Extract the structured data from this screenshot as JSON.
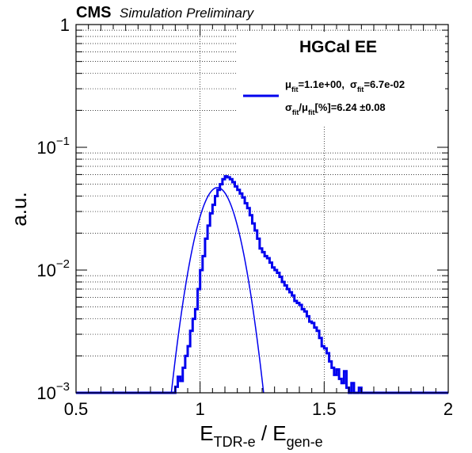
{
  "header": {
    "experiment": "CMS",
    "status": "Simulation Preliminary"
  },
  "legend": {
    "title": "HGCal EE",
    "line1": {
      "mu_sym": "μ",
      "sub": "fit",
      "mu_val": "=1.1e+00,",
      "sigma_sym": "σ",
      "sigma_val": "=6.7e-02"
    },
    "line2": {
      "sigma_sym": "σ",
      "sub": "fit",
      "slash": "/",
      "mu_sym": "μ",
      "rest": "[%]=6.24 ±0.08"
    },
    "color": "#0000ee"
  },
  "axes": {
    "ylabel": "a.u.",
    "xlabel_main1": "E",
    "xlabel_sub1": "TDR-e",
    "xlabel_sep": " / E",
    "xlabel_sub2": "gen-e"
  },
  "chart_data": {
    "type": "line",
    "title": "",
    "xlim": [
      0.5,
      2.0
    ],
    "ylim": [
      0.001,
      1.0
    ],
    "ylog": true,
    "grid": true,
    "xticks": [
      {
        "value": 0.5,
        "label": "0.5"
      },
      {
        "value": 1.0,
        "label": "1"
      },
      {
        "value": 1.5,
        "label": "1.5"
      },
      {
        "value": 2.0,
        "label": "2"
      }
    ],
    "yticks": [
      {
        "value": 1,
        "base": "1",
        "exp": ""
      },
      {
        "value": 0.1,
        "base": "10",
        "exp": "−1"
      },
      {
        "value": 0.01,
        "base": "10",
        "exp": "−2"
      },
      {
        "value": 0.001,
        "base": "10",
        "exp": "−3"
      }
    ],
    "histogram": {
      "name": "E_TDR-e / E_gen-e",
      "bin_width": 0.01,
      "x_start": 0.5,
      "values": [
        0.001,
        0.001,
        0.001,
        0.001,
        0.001,
        0.001,
        0.001,
        0.001,
        0.001,
        0.001,
        0.001,
        0.001,
        0.001,
        0.001,
        0.001,
        0.001,
        0.001,
        0.001,
        0.001,
        0.001,
        0.001,
        0.001,
        0.001,
        0.001,
        0.001,
        0.001,
        0.001,
        0.001,
        0.001,
        0.001,
        0.001,
        0.001,
        0.001,
        0.001,
        0.001,
        0.001,
        0.001,
        0.001,
        0.001,
        0.001,
        0.00112,
        0.00135,
        0.00125,
        0.0016,
        0.002,
        0.0024,
        0.0032,
        0.004,
        0.0048,
        0.007,
        0.01,
        0.013,
        0.018,
        0.023,
        0.029,
        0.034,
        0.04,
        0.045,
        0.05,
        0.055,
        0.058,
        0.057,
        0.055,
        0.052,
        0.048,
        0.045,
        0.042,
        0.039,
        0.035,
        0.032,
        0.028,
        0.024,
        0.021,
        0.018,
        0.015,
        0.014,
        0.013,
        0.0125,
        0.0115,
        0.0105,
        0.01,
        0.0095,
        0.0088,
        0.008,
        0.0075,
        0.007,
        0.0066,
        0.0062,
        0.0056,
        0.0054,
        0.0052,
        0.0048,
        0.0046,
        0.0042,
        0.0038,
        0.0037,
        0.0034,
        0.0032,
        0.0028,
        0.0024,
        0.0023,
        0.0021,
        0.0018,
        0.0016,
        0.0014,
        0.00155,
        0.0013,
        0.0012,
        0.0015,
        0.0011,
        0.001,
        0.0012,
        0.001,
        0.001,
        0.0011,
        0.001,
        0.001,
        0.001,
        0.001,
        0.001,
        0.001,
        0.001,
        0.001,
        0.001,
        0.001,
        0.001,
        0.001,
        0.001,
        0.001,
        0.001,
        0.001,
        0.001,
        0.001,
        0.001,
        0.001,
        0.001,
        0.001,
        0.001,
        0.001,
        0.001,
        0.001,
        0.001,
        0.001,
        0.001,
        0.001,
        0.001,
        0.001,
        0.001,
        0.001,
        0.001
      ]
    },
    "fit": {
      "name": "Gaussian fit",
      "type": "gaussian",
      "amplitude": 0.047,
      "mean": 1.07,
      "sigma": 0.067
    }
  }
}
